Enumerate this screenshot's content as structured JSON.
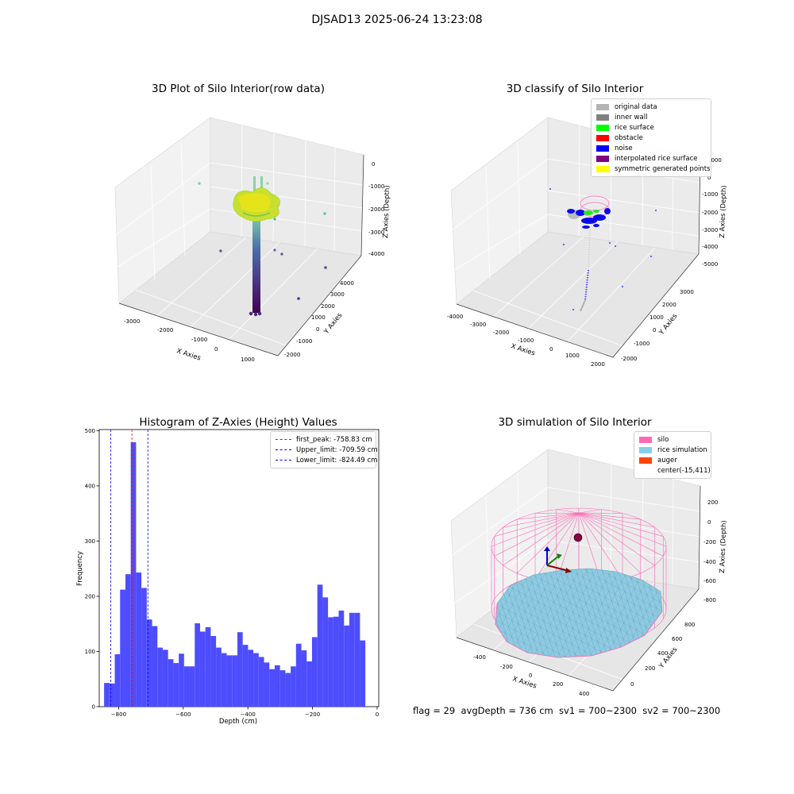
{
  "figure": {
    "suptitle": "DJSAD13 2025-06-24 13:23:08",
    "footer": "flag = 29  avgDepth = 736 cm  sv1 = 700~2300  sv2 = 700~2300"
  },
  "chart_data": [
    {
      "type": "scatter",
      "projection": "3d",
      "title": "3D Plot of Silo Interior(row data)",
      "xlabel": "X Axies",
      "ylabel": "Y Axies",
      "zlabel": "Z Axies (Depth)",
      "x_ticks": [
        "-3000",
        "-2000",
        "-1000",
        "0",
        "1000"
      ],
      "y_ticks": [
        "-2000",
        "-1000",
        "0",
        "1000",
        "2000",
        "3000",
        "4000"
      ],
      "z_ticks": [
        "0",
        "-1000",
        "-2000",
        "-3000",
        "-4000"
      ],
      "colormap": "viridis",
      "grid": true
    },
    {
      "type": "scatter",
      "projection": "3d",
      "title": "3D classify of Silo Interior",
      "xlabel": "X Axies",
      "ylabel": "Y Axies",
      "zlabel": "Z Axies (Depth)",
      "x_ticks": [
        "-4000",
        "-3000",
        "-2000",
        "-1000",
        "0",
        "1000",
        "2000"
      ],
      "y_ticks": [
        "-2000",
        "-1000",
        "0",
        "1000",
        "2000",
        "3000"
      ],
      "z_ticks": [
        "1000",
        "0",
        "-1000",
        "-2000",
        "-3000",
        "-4000",
        "-5000"
      ],
      "legend_position": "upper right",
      "legend": [
        {
          "label": "original data",
          "color": "#b3b3b3"
        },
        {
          "label": "inner wall",
          "color": "#808080"
        },
        {
          "label": "rice surface",
          "color": "#00ff00"
        },
        {
          "label": "obstacle",
          "color": "#ff0000"
        },
        {
          "label": "noise",
          "color": "#0000ff"
        },
        {
          "label": "interpolated rice surface",
          "color": "#800080"
        },
        {
          "label": "symmetric generated points",
          "color": "#ffff00"
        }
      ],
      "grid": true
    },
    {
      "type": "bar",
      "title": "Histogram of Z-Axies (Height) Values",
      "xlabel": "Depth (cm)",
      "ylabel": "Frequency",
      "xlim": [
        -860,
        5
      ],
      "ylim": [
        0,
        502
      ],
      "x_ticks": [
        -800,
        -600,
        -400,
        -200,
        0
      ],
      "y_ticks": [
        0,
        100,
        200,
        300,
        400,
        500
      ],
      "bar_color": "#4d4dff",
      "bin_width": 16.5,
      "bins_start": -845,
      "values": [
        43,
        42,
        95,
        212,
        240,
        479,
        243,
        215,
        158,
        146,
        107,
        103,
        86,
        79,
        96,
        73,
        73,
        151,
        136,
        144,
        128,
        107,
        97,
        93,
        93,
        135,
        112,
        103,
        97,
        90,
        80,
        68,
        75,
        66,
        61,
        73,
        114,
        102,
        82,
        126,
        221,
        198,
        162,
        163,
        174,
        147,
        170,
        170,
        120
      ],
      "reference_lines": [
        {
          "label": "first_peak: -758.83 cm",
          "x": -758.83,
          "color": "#ff0000"
        },
        {
          "label": "Upper_limit: -709.59 cm",
          "x": -709.59,
          "color": "#0000ff"
        },
        {
          "label": "Lower_limit: -824.49 cm",
          "x": -824.49,
          "color": "#0000ff"
        }
      ],
      "legend_position": "upper right"
    },
    {
      "type": "scatter",
      "projection": "3d",
      "title": "3D simulation of Silo Interior",
      "xlabel": "X Axies",
      "ylabel": "Y Axies",
      "zlabel": "Z Axies (Depth)",
      "x_ticks": [
        "-400",
        "-200",
        "0",
        "200",
        "400"
      ],
      "y_ticks": [
        "0",
        "200",
        "400",
        "600",
        "800"
      ],
      "z_ticks": [
        "200",
        "0",
        "-200",
        "-400",
        "-600",
        "-800"
      ],
      "legend_position": "upper right",
      "legend": [
        {
          "label": "silo",
          "color": "#ff69b4"
        },
        {
          "label": "rice simulation",
          "color": "#87ceeb"
        },
        {
          "label": "auger",
          "color": "#ff4500"
        },
        {
          "label": "center(-15,411)",
          "color": "#ffffff"
        }
      ],
      "grid": true
    }
  ]
}
